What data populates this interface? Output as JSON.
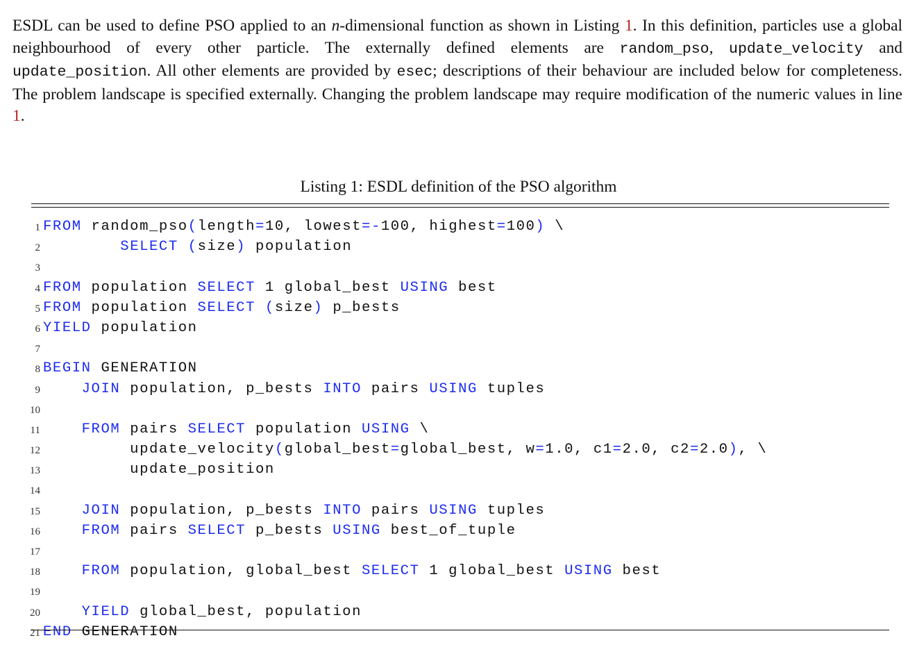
{
  "paragraph": {
    "s1": "ESDL can be used to define PSO applied to an ",
    "s1_math": "n",
    "s1b": "-dimensional function as shown in Listing ",
    "s1_ref": "1",
    "s1c": ". In this definition, particles use a global neighbourhood of every other particle. The externally defined elements are ",
    "code1": "random_pso",
    "sep1": ", ",
    "code2": "update_velocity",
    "sep2": " and ",
    "code3": "update_position",
    "s2": ". All other elements are provided by ",
    "code4": "esec",
    "s3": "; descriptions of their behaviour are included below for completeness. The problem landscape is specified externally. Changing the problem landscape may require modification of the numeric values in line ",
    "s3_ref": "1",
    "s3_end": "."
  },
  "caption": "Listing 1: ESDL definition of the PSO algorithm",
  "colors": {
    "keyword": "#1d2cf0",
    "reference": "#b22222",
    "text": "#111111"
  },
  "listing": [
    {
      "n": "1",
      "tokens": [
        {
          "t": "FROM",
          "kw": true
        },
        {
          "t": " random_pso"
        },
        {
          "t": "(",
          "kw": true
        },
        {
          "t": "length"
        },
        {
          "t": "=",
          "kw": true
        },
        {
          "t": "10, lowest"
        },
        {
          "t": "=-",
          "kw": true
        },
        {
          "t": "100, highest"
        },
        {
          "t": "=",
          "kw": true
        },
        {
          "t": "100"
        },
        {
          "t": ")",
          "kw": true
        },
        {
          "t": " \\"
        }
      ]
    },
    {
      "n": "2",
      "tokens": [
        {
          "t": "        "
        },
        {
          "t": "SELECT",
          "kw": true
        },
        {
          "t": " "
        },
        {
          "t": "(",
          "kw": true
        },
        {
          "t": "size"
        },
        {
          "t": ")",
          "kw": true
        },
        {
          "t": " population"
        }
      ]
    },
    {
      "n": "3",
      "tokens": []
    },
    {
      "n": "4",
      "tokens": [
        {
          "t": "FROM",
          "kw": true
        },
        {
          "t": " population "
        },
        {
          "t": "SELECT",
          "kw": true
        },
        {
          "t": " 1 global_best "
        },
        {
          "t": "USING",
          "kw": true
        },
        {
          "t": " best"
        }
      ]
    },
    {
      "n": "5",
      "tokens": [
        {
          "t": "FROM",
          "kw": true
        },
        {
          "t": " population "
        },
        {
          "t": "SELECT",
          "kw": true
        },
        {
          "t": " "
        },
        {
          "t": "(",
          "kw": true
        },
        {
          "t": "size"
        },
        {
          "t": ")",
          "kw": true
        },
        {
          "t": " p_bests"
        }
      ]
    },
    {
      "n": "6",
      "tokens": [
        {
          "t": "YIELD",
          "kw": true
        },
        {
          "t": " population"
        }
      ]
    },
    {
      "n": "7",
      "tokens": []
    },
    {
      "n": "8",
      "tokens": [
        {
          "t": "BEGIN",
          "kw": true
        },
        {
          "t": " GENERATION"
        }
      ]
    },
    {
      "n": "9",
      "tokens": [
        {
          "t": "    "
        },
        {
          "t": "JOIN",
          "kw": true
        },
        {
          "t": " population, p_bests "
        },
        {
          "t": "INTO",
          "kw": true
        },
        {
          "t": " pairs "
        },
        {
          "t": "USING",
          "kw": true
        },
        {
          "t": " tuples"
        }
      ]
    },
    {
      "n": "10",
      "tokens": []
    },
    {
      "n": "11",
      "tokens": [
        {
          "t": "    "
        },
        {
          "t": "FROM",
          "kw": true
        },
        {
          "t": " pairs "
        },
        {
          "t": "SELECT",
          "kw": true
        },
        {
          "t": " population "
        },
        {
          "t": "USING",
          "kw": true
        },
        {
          "t": " \\"
        }
      ]
    },
    {
      "n": "12",
      "tokens": [
        {
          "t": "         update_velocity"
        },
        {
          "t": "(",
          "kw": true
        },
        {
          "t": "global_best"
        },
        {
          "t": "=",
          "kw": true
        },
        {
          "t": "global_best, w"
        },
        {
          "t": "=",
          "kw": true
        },
        {
          "t": "1.0, c1"
        },
        {
          "t": "=",
          "kw": true
        },
        {
          "t": "2.0, c2"
        },
        {
          "t": "=",
          "kw": true
        },
        {
          "t": "2.0"
        },
        {
          "t": ")",
          "kw": true
        },
        {
          "t": ", \\"
        }
      ]
    },
    {
      "n": "13",
      "tokens": [
        {
          "t": "         update_position"
        }
      ]
    },
    {
      "n": "14",
      "tokens": []
    },
    {
      "n": "15",
      "tokens": [
        {
          "t": "    "
        },
        {
          "t": "JOIN",
          "kw": true
        },
        {
          "t": " population, p_bests "
        },
        {
          "t": "INTO",
          "kw": true
        },
        {
          "t": " pairs "
        },
        {
          "t": "USING",
          "kw": true
        },
        {
          "t": " tuples"
        }
      ]
    },
    {
      "n": "16",
      "tokens": [
        {
          "t": "    "
        },
        {
          "t": "FROM",
          "kw": true
        },
        {
          "t": " pairs "
        },
        {
          "t": "SELECT",
          "kw": true
        },
        {
          "t": " p_bests "
        },
        {
          "t": "USING",
          "kw": true
        },
        {
          "t": " best_of_tuple"
        }
      ]
    },
    {
      "n": "17",
      "tokens": []
    },
    {
      "n": "18",
      "tokens": [
        {
          "t": "    "
        },
        {
          "t": "FROM",
          "kw": true
        },
        {
          "t": " population, global_best "
        },
        {
          "t": "SELECT",
          "kw": true
        },
        {
          "t": " 1 global_best "
        },
        {
          "t": "USING",
          "kw": true
        },
        {
          "t": " best"
        }
      ]
    },
    {
      "n": "19",
      "tokens": []
    },
    {
      "n": "20",
      "tokens": [
        {
          "t": "    "
        },
        {
          "t": "YIELD",
          "kw": true
        },
        {
          "t": " global_best, population"
        }
      ]
    },
    {
      "n": "21",
      "tokens": [
        {
          "t": "END",
          "kw": true
        },
        {
          "t": " GENERATION"
        }
      ]
    }
  ]
}
